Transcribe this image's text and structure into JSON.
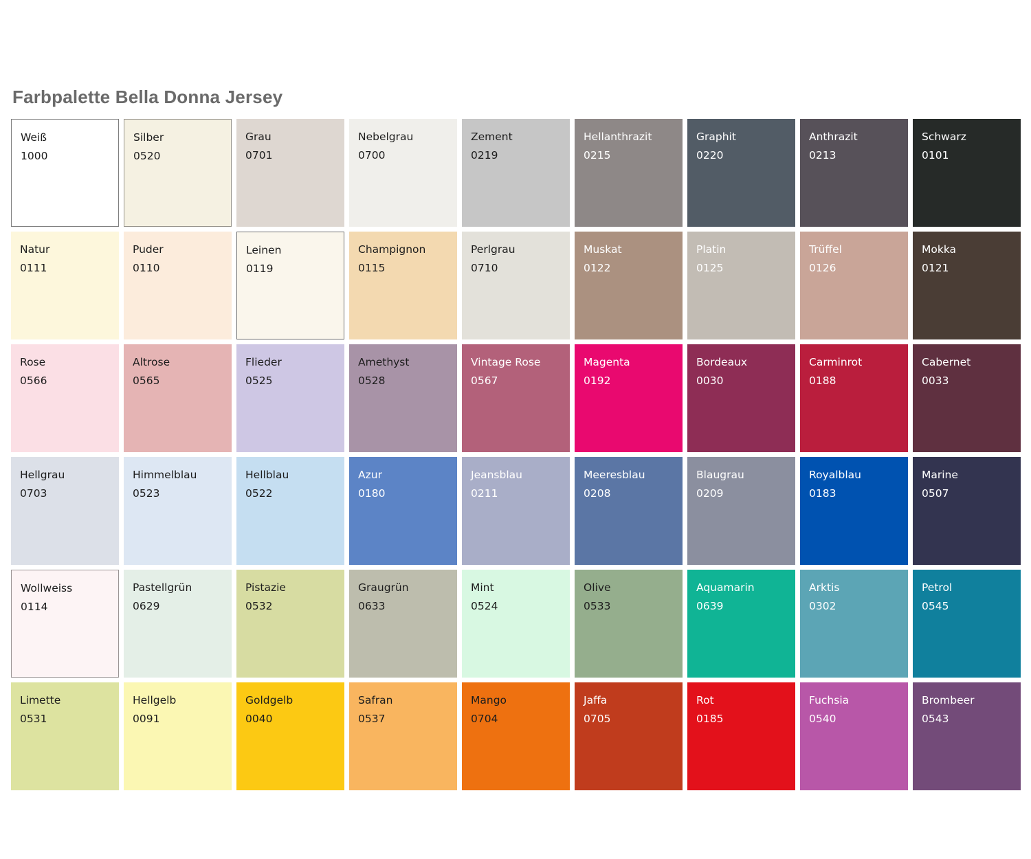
{
  "page": {
    "title": "Farbpalette Bella Donna Jersey",
    "title_color": "#6a6a6a",
    "background": "#ffffff"
  },
  "palette": {
    "columns": 9,
    "rows": 6,
    "swatches": [
      {
        "name": "Weiß",
        "code": "1000",
        "bg": "#ffffff",
        "text": "dark",
        "border": "#7e7e7e"
      },
      {
        "name": "Silber",
        "code": "0520",
        "bg": "#f5f1e2",
        "text": "dark",
        "border": "#95928a"
      },
      {
        "name": "Grau",
        "code": "0701",
        "bg": "#ded7d1",
        "text": "dark"
      },
      {
        "name": "Nebelgrau",
        "code": "0700",
        "bg": "#f0efeb",
        "text": "dark"
      },
      {
        "name": "Zement",
        "code": "0219",
        "bg": "#c6c6c6",
        "text": "dark"
      },
      {
        "name": "Hellanthrazit",
        "code": "0215",
        "bg": "#8e8887",
        "text": "light"
      },
      {
        "name": "Graphit",
        "code": "0220",
        "bg": "#525c66",
        "text": "light"
      },
      {
        "name": "Anthrazit",
        "code": "0213",
        "bg": "#575159",
        "text": "light"
      },
      {
        "name": "Schwarz",
        "code": "0101",
        "bg": "#262a28",
        "text": "light"
      },
      {
        "name": "Natur",
        "code": "0111",
        "bg": "#fdf7dc",
        "text": "dark"
      },
      {
        "name": "Puder",
        "code": "0110",
        "bg": "#fcecdc",
        "text": "dark"
      },
      {
        "name": "Leinen",
        "code": "0119",
        "bg": "#faf6ec",
        "text": "dark",
        "border": "#6f6f6f"
      },
      {
        "name": "Champignon",
        "code": "0115",
        "bg": "#f3d9b0",
        "text": "dark"
      },
      {
        "name": "Perlgrau",
        "code": "0710",
        "bg": "#e3e1da",
        "text": "dark"
      },
      {
        "name": "Muskat",
        "code": "0122",
        "bg": "#ab9180",
        "text": "light"
      },
      {
        "name": "Platin",
        "code": "0125",
        "bg": "#c2bcb4",
        "text": "light"
      },
      {
        "name": "Trüffel",
        "code": "0126",
        "bg": "#c9a598",
        "text": "light"
      },
      {
        "name": "Mokka",
        "code": "0121",
        "bg": "#4a3d35",
        "text": "light"
      },
      {
        "name": "Rose",
        "code": "0566",
        "bg": "#fbdfe5",
        "text": "dark"
      },
      {
        "name": "Altrose",
        "code": "0565",
        "bg": "#e5b4b4",
        "text": "dark"
      },
      {
        "name": "Flieder",
        "code": "0525",
        "bg": "#cec7e4",
        "text": "dark"
      },
      {
        "name": "Amethyst",
        "code": "0528",
        "bg": "#a893a7",
        "text": "dark"
      },
      {
        "name": "Vintage Rose",
        "code": "0567",
        "bg": "#b3617a",
        "text": "light"
      },
      {
        "name": "Magenta",
        "code": "0192",
        "bg": "#e9096f",
        "text": "light"
      },
      {
        "name": "Bordeaux",
        "code": "0030",
        "bg": "#8e2d55",
        "text": "light"
      },
      {
        "name": "Carminrot",
        "code": "0188",
        "bg": "#ba1e3d",
        "text": "light"
      },
      {
        "name": "Cabernet",
        "code": "0033",
        "bg": "#5f3040",
        "text": "light"
      },
      {
        "name": "Hellgrau",
        "code": "0703",
        "bg": "#dce0e8",
        "text": "dark"
      },
      {
        "name": "Himmelblau",
        "code": "0523",
        "bg": "#dde7f3",
        "text": "dark"
      },
      {
        "name": "Hellblau",
        "code": "0522",
        "bg": "#c5def1",
        "text": "dark"
      },
      {
        "name": "Azur",
        "code": "0180",
        "bg": "#5c84c6",
        "text": "light"
      },
      {
        "name": "Jeansblau",
        "code": "0211",
        "bg": "#a9aec8",
        "text": "light"
      },
      {
        "name": "Meeresblau",
        "code": "0208",
        "bg": "#5b76a5",
        "text": "light"
      },
      {
        "name": "Blaugrau",
        "code": "0209",
        "bg": "#8b8f9f",
        "text": "light"
      },
      {
        "name": "Royalblau",
        "code": "0183",
        "bg": "#0052b0",
        "text": "light"
      },
      {
        "name": "Marine",
        "code": "0507",
        "bg": "#333450",
        "text": "light"
      },
      {
        "name": "Wollweiss",
        "code": "0114",
        "bg": "#fdf4f5",
        "text": "dark",
        "border": "#9a9494"
      },
      {
        "name": "Pastellgrün",
        "code": "0629",
        "bg": "#e4efe7",
        "text": "dark"
      },
      {
        "name": "Pistazie",
        "code": "0532",
        "bg": "#d7dca2",
        "text": "dark"
      },
      {
        "name": "Graugrün",
        "code": "0633",
        "bg": "#bdbdad",
        "text": "dark"
      },
      {
        "name": "Mint",
        "code": "0524",
        "bg": "#d8f8e2",
        "text": "dark"
      },
      {
        "name": "Olive",
        "code": "0533",
        "bg": "#95ae8d",
        "text": "dark"
      },
      {
        "name": "Aquamarin",
        "code": "0639",
        "bg": "#10b495",
        "text": "light"
      },
      {
        "name": "Arktis",
        "code": "0302",
        "bg": "#5ca5b5",
        "text": "light"
      },
      {
        "name": "Petrol",
        "code": "0545",
        "bg": "#10809d",
        "text": "light"
      },
      {
        "name": "Limette",
        "code": "0531",
        "bg": "#dde3a0",
        "text": "dark"
      },
      {
        "name": "Hellgelb",
        "code": "0091",
        "bg": "#fbf7b3",
        "text": "dark"
      },
      {
        "name": "Goldgelb",
        "code": "0040",
        "bg": "#fcc913",
        "text": "dark"
      },
      {
        "name": "Safran",
        "code": "0537",
        "bg": "#f9b55f",
        "text": "dark"
      },
      {
        "name": "Mango",
        "code": "0704",
        "bg": "#ee7110",
        "text": "dark"
      },
      {
        "name": "Jaffa",
        "code": "0705",
        "bg": "#c03c1d",
        "text": "light"
      },
      {
        "name": "Rot",
        "code": "0185",
        "bg": "#e3111b",
        "text": "light"
      },
      {
        "name": "Fuchsia",
        "code": "0540",
        "bg": "#b857a8",
        "text": "light"
      },
      {
        "name": "Brombeer",
        "code": "0543",
        "bg": "#734b79",
        "text": "light"
      }
    ]
  }
}
